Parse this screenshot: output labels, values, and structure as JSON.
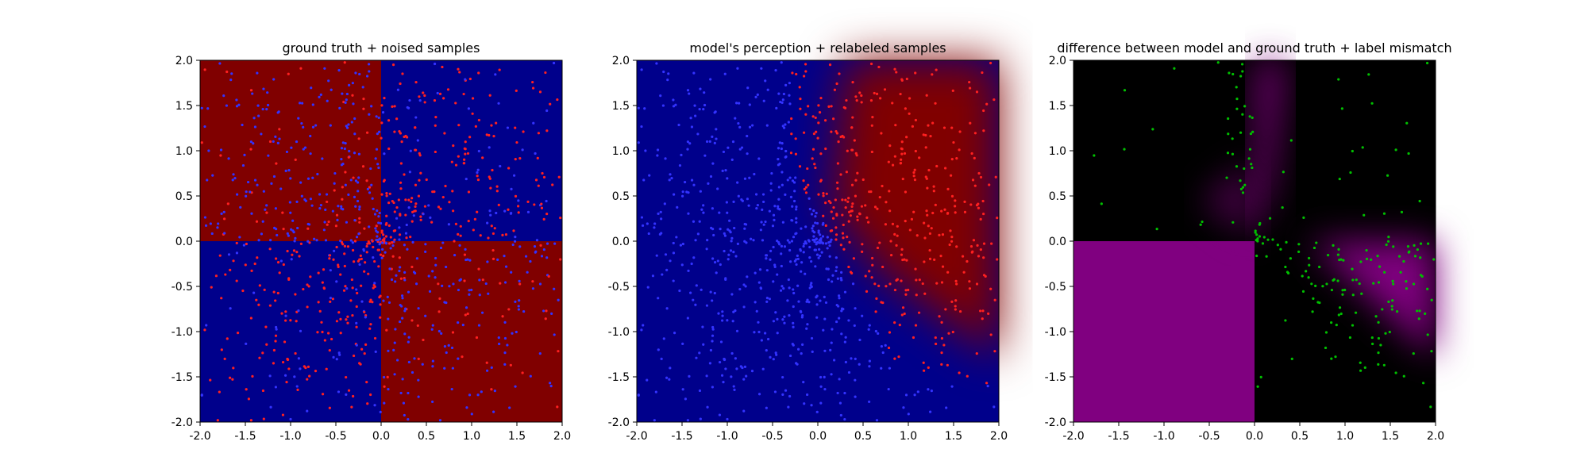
{
  "chart_data": [
    {
      "type": "heatmap",
      "title": "ground truth + noised samples",
      "xlim": [
        -2.0,
        2.0
      ],
      "ylim": [
        -2.0,
        2.0
      ],
      "xticks": [
        "-2.0",
        "-1.5",
        "-1.0",
        "-0.5",
        "0.0",
        "0.5",
        "1.0",
        "1.5",
        "2.0"
      ],
      "yticks": [
        "-2.0",
        "-1.5",
        "-1.0",
        "-0.5",
        "0.0",
        "0.5",
        "1.0",
        "1.5",
        "2.0"
      ],
      "background": "xor quadrants: red where x*y<0, blue where x*y>0",
      "regions": [
        {
          "x": [
            -2,
            0
          ],
          "y": [
            0,
            2
          ],
          "color": "#800000"
        },
        {
          "x": [
            0,
            2
          ],
          "y": [
            0,
            2
          ],
          "color": "#00008b"
        },
        {
          "x": [
            -2,
            0
          ],
          "y": [
            -2,
            0
          ],
          "color": "#00008b"
        },
        {
          "x": [
            0,
            2
          ],
          "y": [
            -2,
            0
          ],
          "color": "#800000"
        }
      ],
      "scatter": {
        "n_points": 1000,
        "distribution": "uniform on [-2,2]x[-2,2], denser near origin",
        "label_rule": "red where x*y>0, blue where x*y<0 (contrasting region), with label noise",
        "colors": {
          "positive": "#ff2020",
          "negative": "#3333ff"
        }
      }
    },
    {
      "type": "heatmap",
      "title": "model's perception + relabeled samples",
      "xlim": [
        -2.0,
        2.0
      ],
      "ylim": [
        -2.0,
        2.0
      ],
      "xticks": [
        "-2.0",
        "-1.5",
        "-1.0",
        "-0.5",
        "0.0",
        "0.5",
        "1.0",
        "1.5",
        "2.0"
      ],
      "yticks": [
        "-2.0",
        "-1.5",
        "-1.0",
        "-0.5",
        "0.0",
        "0.5",
        "1.0",
        "1.5",
        "2.0"
      ],
      "background": "mostly blue; red wedge in upper-right extending toward lower-right with soft diagonal boundary",
      "colors": {
        "class_a": "#00008b",
        "class_b": "#800000"
      },
      "scatter": {
        "n_points": 1000,
        "label_rule": "relabeled by model prediction",
        "colors": {
          "positive": "#ff2020",
          "negative": "#3333ff"
        }
      }
    },
    {
      "type": "heatmap",
      "title": "difference between model and ground truth + label mismatch",
      "xlim": [
        -2.0,
        2.0
      ],
      "ylim": [
        -2.0,
        2.0
      ],
      "xticks": [
        "-2.0",
        "-1.5",
        "-1.0",
        "-0.5",
        "0.0",
        "0.5",
        "1.0",
        "1.5",
        "2.0"
      ],
      "yticks": [
        "-2.0",
        "-1.5",
        "-1.0",
        "-0.5",
        "0.0",
        "0.5",
        "1.0",
        "1.5",
        "2.0"
      ],
      "background": "black where model agrees, purple where model disagrees; solid purple lower-left quadrant, purple gradients near boundaries",
      "colors": {
        "agree": "#000000",
        "disagree": "#800080"
      },
      "scatter": {
        "n_points": 420,
        "label_rule": "samples whose labels mismatch the ground truth",
        "colors": {
          "mismatch": "#00c000"
        }
      }
    }
  ]
}
